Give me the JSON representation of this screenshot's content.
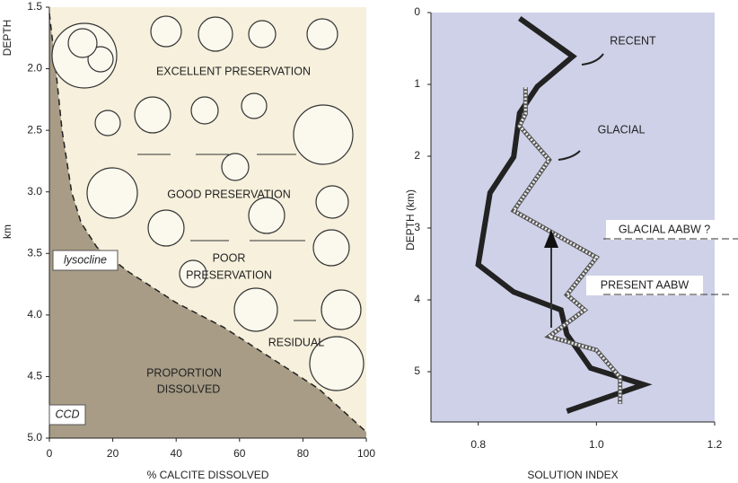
{
  "chart_data": [
    {
      "type": "area",
      "x_label": "% CALCITE DISSOLVED",
      "y_label": "DEPTH",
      "y_unit_label": "km",
      "x": [
        0,
        2,
        4,
        7,
        10,
        15,
        25,
        40,
        55,
        70,
        85,
        100
      ],
      "values": [
        1.55,
        2.0,
        2.5,
        3.0,
        3.25,
        3.45,
        3.65,
        3.9,
        4.1,
        4.35,
        4.6,
        4.95
      ],
      "color": "#a89c86",
      "background": "#f6f0dc",
      "xlim": [
        0,
        100
      ],
      "xticks": [
        0,
        20,
        40,
        60,
        80,
        100
      ],
      "ylim": [
        1.5,
        5.0
      ],
      "y_inverted": true,
      "yticks": [
        1.5,
        {
          "value": 2.0,
          "label": "2.0"
        },
        2.5,
        {
          "value": 3.0,
          "label": "3.0"
        },
        3.5,
        {
          "value": 4.0,
          "label": "4.0"
        },
        4.5,
        {
          "value": 5.0,
          "label": "5.0"
        }
      ],
      "annotations": [
        "EXCELLENT PRESERVATION",
        "GOOD PRESERVATION",
        "POOR",
        "PRESERVATION",
        "RESIDUAL",
        "PROPORTION",
        "DISSOLVED",
        "lysocline",
        "CCD"
      ]
    },
    {
      "type": "line",
      "x_label": "SOLUTION INDEX",
      "y_label": "DEPTH (km)",
      "background": "#cfd1e8",
      "xlim": [
        0.72,
        1.2
      ],
      "xticks": [
        0.8,
        {
          "value": 1.0,
          "label": "1.0"
        },
        1.2
      ],
      "ylim": [
        0,
        5.7
      ],
      "y_inverted": true,
      "yticks": [
        0,
        1,
        2,
        3,
        4,
        5
      ],
      "series": [
        {
          "name": "RECENT",
          "color": "#222222",
          "style": "solid",
          "x": [
            0.87,
            0.96,
            0.9,
            0.87,
            0.86,
            0.82,
            0.8,
            0.86,
            0.94,
            0.95,
            0.99,
            1.08,
            0.95
          ],
          "values": [
            0.08,
            0.61,
            1.03,
            1.4,
            2.01,
            2.51,
            3.51,
            3.89,
            4.14,
            4.48,
            4.95,
            5.18,
            5.55
          ]
        },
        {
          "name": "GLACIAL",
          "color": "#555555",
          "style": "hatched",
          "x": [
            0.88,
            0.88,
            0.87,
            0.92,
            0.86,
            1.0,
            0.95,
            0.98,
            0.92,
            1.0,
            1.04,
            1.04
          ],
          "values": [
            1.04,
            1.41,
            1.58,
            2.05,
            2.76,
            3.41,
            3.93,
            4.14,
            4.51,
            4.7,
            5.08,
            5.45
          ]
        }
      ],
      "annotations": [
        "GLACIAL AABW ?",
        "PRESENT AABW"
      ]
    }
  ]
}
